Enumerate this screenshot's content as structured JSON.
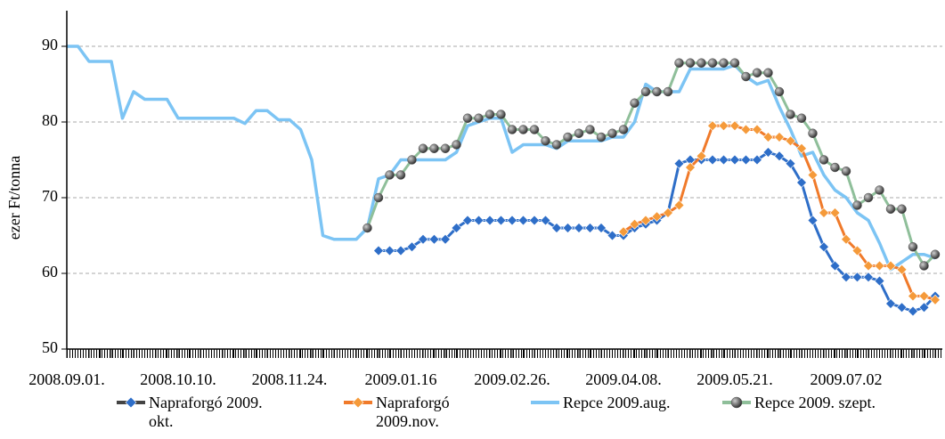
{
  "chart_data": {
    "type": "line",
    "y_label": "ezer Ft/tonna",
    "ylim": [
      50,
      95
    ],
    "yticks": [
      50,
      60,
      70,
      80,
      90
    ],
    "grid": true,
    "legend": "bottom",
    "categories": [
      "2008.09.01.",
      null,
      null,
      null,
      null,
      null,
      null,
      null,
      null,
      null,
      "2008.10.10.",
      null,
      null,
      null,
      null,
      null,
      null,
      null,
      null,
      null,
      "2008.11.24.",
      null,
      null,
      null,
      null,
      null,
      null,
      null,
      null,
      null,
      "2009.01.16",
      null,
      null,
      null,
      null,
      null,
      null,
      null,
      null,
      null,
      "2009.02.26.",
      null,
      null,
      null,
      null,
      null,
      null,
      null,
      null,
      null,
      "2009.04.08.",
      null,
      null,
      null,
      null,
      null,
      null,
      null,
      null,
      null,
      "2009.05.21.",
      null,
      null,
      null,
      null,
      null,
      null,
      null,
      null,
      null,
      "2009.07.02",
      null,
      null,
      null,
      null,
      null,
      null,
      null,
      null
    ],
    "series": [
      {
        "name": "Napraforgó 2009. okt.",
        "color": "#2e6ec8",
        "marker": "diamond",
        "marker_color": "#2e6ec8",
        "values": [
          null,
          null,
          null,
          null,
          null,
          null,
          null,
          null,
          null,
          null,
          null,
          null,
          null,
          null,
          null,
          null,
          null,
          null,
          null,
          null,
          null,
          null,
          null,
          null,
          null,
          null,
          null,
          null,
          63,
          63,
          63,
          63.5,
          64.5,
          64.5,
          64.5,
          66,
          67,
          67,
          67,
          67,
          67,
          67,
          67,
          67,
          66,
          66,
          66,
          66,
          66,
          65,
          65,
          66,
          66.5,
          67,
          68,
          74.5,
          75,
          75,
          75,
          75,
          75,
          75,
          75,
          76,
          75.5,
          74.5,
          72,
          67,
          63.5,
          61,
          59.5,
          59.5,
          59.5,
          59,
          56,
          55.5,
          55,
          55.5,
          57
        ]
      },
      {
        "name": "Napraforgó 2009.nov.",
        "color": "#f07a2a",
        "marker": "diamond",
        "marker_color": "#f59a3a",
        "values": [
          null,
          null,
          null,
          null,
          null,
          null,
          null,
          null,
          null,
          null,
          null,
          null,
          null,
          null,
          null,
          null,
          null,
          null,
          null,
          null,
          null,
          null,
          null,
          null,
          null,
          null,
          null,
          null,
          null,
          null,
          null,
          null,
          null,
          null,
          null,
          null,
          null,
          null,
          null,
          null,
          null,
          null,
          null,
          null,
          null,
          null,
          null,
          null,
          null,
          null,
          65.5,
          66.5,
          67,
          67.5,
          68,
          69,
          74,
          75.5,
          79.5,
          79.5,
          79.5,
          79,
          79,
          78,
          78,
          77.5,
          76.5,
          73,
          68,
          68,
          64.5,
          63,
          61,
          61,
          61,
          60.5,
          57,
          57,
          56.5
        ]
      },
      {
        "name": "Repce 2009.aug.",
        "color": "#7cc4f4",
        "marker": "none",
        "values": [
          90,
          90,
          88,
          88,
          88,
          80.5,
          84,
          83,
          83,
          83,
          80.5,
          80.5,
          80.5,
          80.5,
          80.5,
          80.5,
          79.8,
          81.5,
          81.5,
          80.3,
          80.3,
          79,
          75,
          65,
          64.5,
          64.5,
          64.5,
          66,
          72.5,
          73,
          75,
          75,
          75,
          75,
          75,
          76,
          79.5,
          80,
          80.5,
          80.5,
          76,
          77,
          77,
          77,
          76.5,
          77.5,
          77.5,
          77.5,
          77.5,
          78,
          78,
          80,
          85,
          84,
          84,
          84,
          87,
          87,
          87,
          87,
          87.5,
          86,
          85,
          85.5,
          82,
          79,
          75.5,
          76,
          73,
          71,
          70,
          68,
          67,
          64,
          60.5,
          61.5,
          62.5,
          62.5,
          62
        ]
      },
      {
        "name": "Repce 2009. szept.",
        "color": "#8fbf9a",
        "marker": "circle",
        "marker_color": "#555555",
        "values": [
          null,
          null,
          null,
          null,
          null,
          null,
          null,
          null,
          null,
          null,
          null,
          null,
          null,
          null,
          null,
          null,
          null,
          null,
          null,
          null,
          null,
          null,
          null,
          null,
          null,
          null,
          null,
          66,
          70,
          73,
          73,
          75,
          76.5,
          76.5,
          76.5,
          77,
          80.5,
          80.5,
          81,
          81,
          79,
          79,
          79,
          77.5,
          77,
          78,
          78.5,
          79,
          78,
          78.5,
          79,
          82.5,
          84,
          84,
          84,
          87.8,
          87.8,
          87.8,
          87.8,
          87.8,
          87.8,
          86,
          86.5,
          86.5,
          84,
          81,
          80.5,
          78.5,
          75,
          74,
          73.5,
          69,
          70,
          71,
          68.5,
          68.5,
          63.5,
          61,
          62.5
        ]
      }
    ]
  }
}
